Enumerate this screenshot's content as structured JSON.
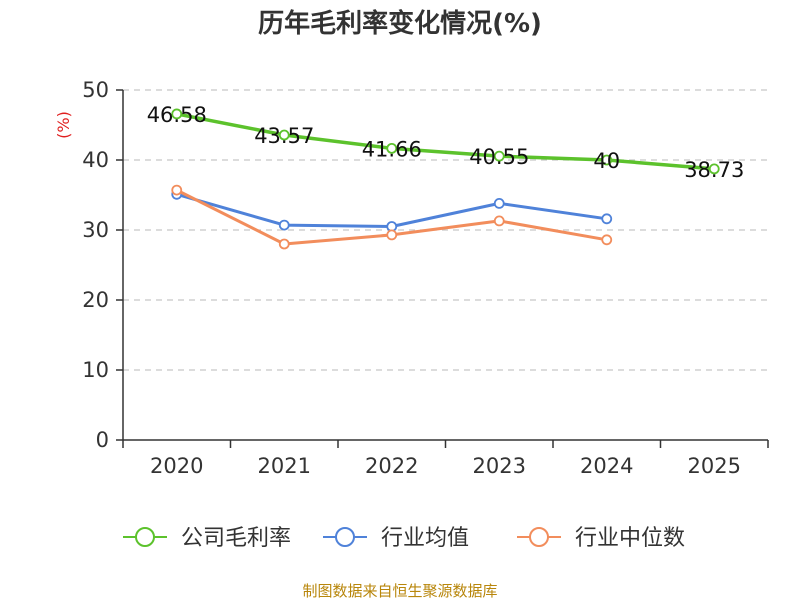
{
  "chart_data": {
    "type": "line",
    "title": "历年毛利率变化情况(%)",
    "ylabel": "(%)",
    "xlabel": "",
    "categories": [
      "2020",
      "2021",
      "2022",
      "2023",
      "2024",
      "2025"
    ],
    "ylim": [
      0,
      50
    ],
    "yticks": [
      0,
      10,
      20,
      30,
      40,
      50
    ],
    "grid": true,
    "legend_position": "bottom",
    "series": [
      {
        "name": "公司毛利率",
        "color": "#5cc22c",
        "values": [
          46.58,
          43.57,
          41.66,
          40.55,
          40,
          38.73
        ],
        "labels": [
          "46.58",
          "43.57",
          "41.66",
          "40.55",
          "40",
          "38.73"
        ]
      },
      {
        "name": "行业均值",
        "color": "#4f82d9",
        "values": [
          35.1,
          30.7,
          30.5,
          33.8,
          31.6,
          null
        ]
      },
      {
        "name": "行业中位数",
        "color": "#f28d5c",
        "values": [
          35.7,
          28.0,
          29.3,
          31.3,
          28.6,
          null
        ]
      }
    ]
  },
  "source": "制图数据来自恒生聚源数据库"
}
